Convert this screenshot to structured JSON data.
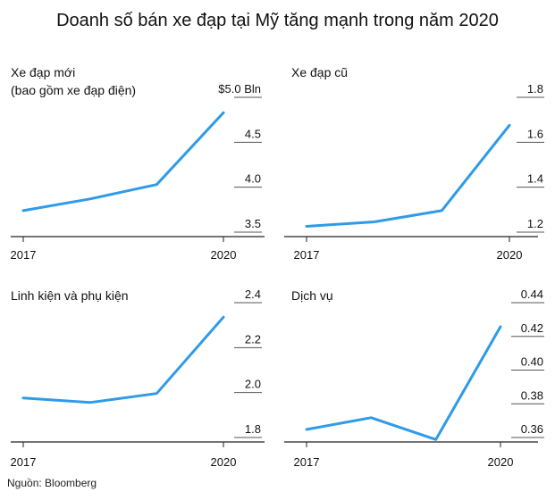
{
  "title": "Doanh số bán xe đạp tại Mỹ tăng mạnh trong năm 2020",
  "source": "Nguồn: Bloomberg",
  "colors": {
    "line": "#2f9be8",
    "axis": "#222222",
    "tick": "#555555"
  },
  "chart_data": [
    {
      "type": "line",
      "title_lines": [
        "Xe đạp mới",
        "(bao gồm xe đạp điện)"
      ],
      "x": [
        2017,
        2018,
        2019,
        2020
      ],
      "x_tick_labels": [
        "2017",
        "2020"
      ],
      "values": [
        3.65,
        3.78,
        3.94,
        4.74
      ],
      "ylim": [
        3.5,
        5.0
      ],
      "y_ticks": [
        3.5,
        4.0,
        4.5,
        5.0
      ],
      "y_tick_labels": [
        "3.5",
        "4.0",
        "4.5",
        "$5.0 Bln"
      ]
    },
    {
      "type": "line",
      "title_lines": [
        "Xe đạp cũ"
      ],
      "x": [
        2017,
        2018,
        2019,
        2020
      ],
      "x_tick_labels": [
        "2017",
        "2020"
      ],
      "values": [
        1.19,
        1.21,
        1.26,
        1.64
      ],
      "ylim": [
        1.2,
        1.8
      ],
      "y_ticks": [
        1.2,
        1.4,
        1.6,
        1.8
      ],
      "y_tick_labels": [
        "1.2",
        "1.4",
        "1.6",
        "1.8"
      ]
    },
    {
      "type": "line",
      "title_lines": [
        "Linh kiện và phụ kiện"
      ],
      "x": [
        2017,
        2018,
        2019,
        2020
      ],
      "x_tick_labels": [
        "2017",
        "2020"
      ],
      "values": [
        1.94,
        1.92,
        1.96,
        2.3
      ],
      "ylim": [
        1.8,
        2.4
      ],
      "y_ticks": [
        1.8,
        2.0,
        2.2,
        2.4
      ],
      "y_tick_labels": [
        "1.8",
        "2.0",
        "2.2",
        "2.4"
      ]
    },
    {
      "type": "line",
      "title_lines": [
        "Dịch vụ"
      ],
      "x": [
        2017,
        2018,
        2019,
        2020
      ],
      "x_tick_labels": [
        "2017",
        "2020"
      ],
      "values": [
        0.36,
        0.367,
        0.354,
        0.421
      ],
      "ylim": [
        0.36,
        0.44
      ],
      "y_ticks": [
        0.36,
        0.38,
        0.4,
        0.42,
        0.44
      ],
      "y_tick_labels": [
        "0.36",
        "0.38",
        "0.40",
        "0.42",
        "0.44"
      ]
    }
  ]
}
